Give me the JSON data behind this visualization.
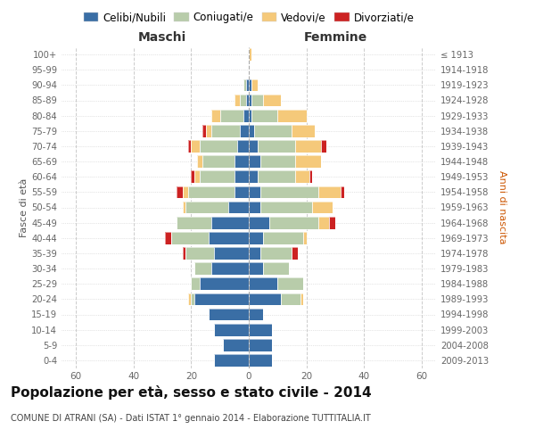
{
  "age_groups": [
    "0-4",
    "5-9",
    "10-14",
    "15-19",
    "20-24",
    "25-29",
    "30-34",
    "35-39",
    "40-44",
    "45-49",
    "50-54",
    "55-59",
    "60-64",
    "65-69",
    "70-74",
    "75-79",
    "80-84",
    "85-89",
    "90-94",
    "95-99",
    "100+"
  ],
  "birth_years": [
    "2009-2013",
    "2004-2008",
    "1999-2003",
    "1994-1998",
    "1989-1993",
    "1984-1988",
    "1979-1983",
    "1974-1978",
    "1969-1973",
    "1964-1968",
    "1959-1963",
    "1954-1958",
    "1949-1953",
    "1944-1948",
    "1939-1943",
    "1934-1938",
    "1929-1933",
    "1924-1928",
    "1919-1923",
    "1914-1918",
    "≤ 1913"
  ],
  "maschi_celibe": [
    12,
    9,
    12,
    14,
    19,
    17,
    13,
    12,
    14,
    13,
    7,
    5,
    5,
    5,
    4,
    3,
    2,
    1,
    1,
    0,
    0
  ],
  "maschi_coniugato": [
    0,
    0,
    0,
    0,
    1,
    3,
    6,
    10,
    13,
    12,
    15,
    16,
    12,
    11,
    13,
    10,
    8,
    2,
    1,
    0,
    0
  ],
  "maschi_vedovo": [
    0,
    0,
    0,
    0,
    1,
    0,
    0,
    0,
    0,
    0,
    1,
    2,
    2,
    2,
    3,
    2,
    3,
    2,
    0,
    0,
    0
  ],
  "maschi_divorziato": [
    0,
    0,
    0,
    0,
    0,
    0,
    0,
    1,
    2,
    0,
    0,
    2,
    1,
    0,
    1,
    1,
    0,
    0,
    0,
    0,
    0
  ],
  "femmine_nubile": [
    8,
    8,
    8,
    5,
    11,
    10,
    5,
    4,
    5,
    7,
    4,
    4,
    3,
    4,
    3,
    2,
    1,
    1,
    1,
    0,
    0
  ],
  "femmine_coniugata": [
    0,
    0,
    0,
    0,
    7,
    9,
    9,
    11,
    14,
    17,
    18,
    20,
    13,
    12,
    13,
    13,
    9,
    4,
    0,
    0,
    0
  ],
  "femmine_vedova": [
    0,
    0,
    0,
    0,
    1,
    0,
    0,
    0,
    1,
    4,
    7,
    8,
    5,
    9,
    9,
    8,
    10,
    6,
    2,
    0,
    1
  ],
  "femmine_divorziata": [
    0,
    0,
    0,
    0,
    0,
    0,
    0,
    2,
    0,
    2,
    0,
    1,
    1,
    0,
    2,
    0,
    0,
    0,
    0,
    0,
    0
  ],
  "colors": {
    "celibe": "#3a6ea5",
    "coniugato": "#b8ccaa",
    "vedovo": "#f5c97a",
    "divorziato": "#cc2222"
  },
  "title": "Popolazione per età, sesso e stato civile - 2014",
  "subtitle": "COMUNE DI ATRANI (SA) - Dati ISTAT 1° gennaio 2014 - Elaborazione TUTTITALIA.IT",
  "label_maschi": "Maschi",
  "label_femmine": "Femmine",
  "label_fasce": "Fasce di età",
  "label_anni": "Anni di nascita",
  "xlim": 65,
  "legend_labels": [
    "Celibi/Nubili",
    "Coniugati/e",
    "Vedovi/e",
    "Divorziati/e"
  ],
  "bg_color": "#ffffff",
  "grid_color": "#cccccc",
  "tick_color": "#666666"
}
